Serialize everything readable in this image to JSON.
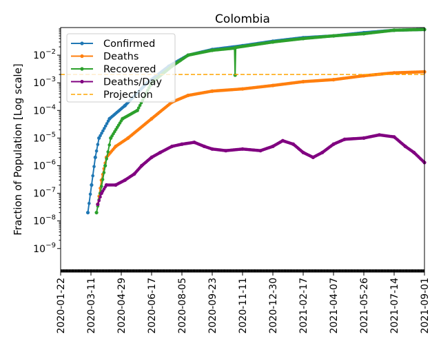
{
  "chart_data": {
    "type": "line",
    "title": "Colombia",
    "xlabel": "",
    "ylabel": "Fraction of Population [Log scale]",
    "yscale": "log",
    "xlim": [
      "2020-01-22",
      "2021-09-01"
    ],
    "ylim": [
      1.4e-10,
      0.1
    ],
    "grid": false,
    "legend_placement": "top-left",
    "xticks": [
      "2020-01-22",
      "2020-03-11",
      "2020-04-29",
      "2020-06-17",
      "2020-08-05",
      "2020-09-23",
      "2020-11-11",
      "2020-12-30",
      "2021-02-17",
      "2021-04-07",
      "2021-05-26",
      "2021-07-14",
      "2021-09-01"
    ],
    "yticks": [
      {
        "value": 1e-09,
        "mant": "10",
        "exp": "−9"
      },
      {
        "value": 1e-08,
        "mant": "10",
        "exp": "−8"
      },
      {
        "value": 1e-07,
        "mant": "10",
        "exp": "−7"
      },
      {
        "value": 1e-06,
        "mant": "10",
        "exp": "−6"
      },
      {
        "value": 1e-05,
        "mant": "10",
        "exp": "−5"
      },
      {
        "value": 0.0001,
        "mant": "10",
        "exp": "−4"
      },
      {
        "value": 0.001,
        "mant": "10",
        "exp": "−3"
      },
      {
        "value": 0.01,
        "mant": "10",
        "exp": "−2"
      }
    ],
    "series": [
      {
        "name": "Confirmed",
        "color": "#1f77b4",
        "points": [
          [
            "2020-03-06",
            2e-08
          ],
          [
            "2020-03-12",
            2e-07
          ],
          [
            "2020-03-18",
            2e-06
          ],
          [
            "2020-03-24",
            1e-05
          ],
          [
            "2020-04-10",
            5e-05
          ],
          [
            "2020-05-05",
            0.00015
          ],
          [
            "2020-06-10",
            0.001
          ],
          [
            "2020-07-15",
            0.004
          ],
          [
            "2020-08-15",
            0.01
          ],
          [
            "2020-09-23",
            0.016
          ],
          [
            "2020-11-11",
            0.022
          ],
          [
            "2020-12-30",
            0.032
          ],
          [
            "2021-02-17",
            0.043
          ],
          [
            "2021-04-07",
            0.05
          ],
          [
            "2021-05-26",
            0.065
          ],
          [
            "2021-07-14",
            0.08
          ],
          [
            "2021-09-01",
            0.085
          ]
        ]
      },
      {
        "name": "Deaths",
        "color": "#ff7f0e",
        "points": [
          [
            "2020-03-22",
            4e-08
          ],
          [
            "2020-03-28",
            3e-07
          ],
          [
            "2020-04-05",
            2e-06
          ],
          [
            "2020-04-20",
            5e-06
          ],
          [
            "2020-05-10",
            1e-05
          ],
          [
            "2020-06-17",
            5e-05
          ],
          [
            "2020-07-20",
            0.0002
          ],
          [
            "2020-08-15",
            0.00035
          ],
          [
            "2020-09-23",
            0.0005
          ],
          [
            "2020-11-11",
            0.0006
          ],
          [
            "2020-12-30",
            0.0008
          ],
          [
            "2021-02-17",
            0.0011
          ],
          [
            "2021-04-07",
            0.0013
          ],
          [
            "2021-05-26",
            0.0018
          ],
          [
            "2021-07-14",
            0.0023
          ],
          [
            "2021-09-01",
            0.0025
          ]
        ]
      },
      {
        "name": "Recovered",
        "color": "#2ca02c",
        "points": [
          [
            "2020-03-20",
            2e-08
          ],
          [
            "2020-03-26",
            1e-07
          ],
          [
            "2020-04-03",
            1e-06
          ],
          [
            "2020-04-12",
            1e-05
          ],
          [
            "2020-05-01",
            5e-05
          ],
          [
            "2020-05-25",
            0.0001
          ],
          [
            "2020-06-17",
            0.001
          ],
          [
            "2020-07-20",
            0.004
          ],
          [
            "2020-08-15",
            0.01
          ],
          [
            "2020-09-23",
            0.015
          ],
          [
            "2020-10-29",
            0.018
          ],
          [
            "2020-10-30",
            0.0019
          ],
          [
            "2020-10-31",
            0.019
          ],
          [
            "2020-12-30",
            0.03
          ],
          [
            "2021-02-17",
            0.04
          ],
          [
            "2021-04-07",
            0.05
          ],
          [
            "2021-05-26",
            0.06
          ],
          [
            "2021-07-14",
            0.08
          ],
          [
            "2021-09-01",
            0.085
          ]
        ]
      },
      {
        "name": "Deaths/Day",
        "color": "#800080",
        "points": [
          [
            "2020-03-22",
            4e-08
          ],
          [
            "2020-03-28",
            1e-07
          ],
          [
            "2020-04-05",
            2e-07
          ],
          [
            "2020-04-20",
            2e-07
          ],
          [
            "2020-05-05",
            3e-07
          ],
          [
            "2020-05-20",
            5e-07
          ],
          [
            "2020-06-01",
            1e-06
          ],
          [
            "2020-06-17",
            2e-06
          ],
          [
            "2020-07-01",
            3e-06
          ],
          [
            "2020-07-20",
            5e-06
          ],
          [
            "2020-08-05",
            6e-06
          ],
          [
            "2020-08-25",
            7e-06
          ],
          [
            "2020-09-10",
            5e-06
          ],
          [
            "2020-09-23",
            4e-06
          ],
          [
            "2020-10-15",
            3.5e-06
          ],
          [
            "2020-11-11",
            4e-06
          ],
          [
            "2020-12-10",
            3.5e-06
          ],
          [
            "2020-12-30",
            5e-06
          ],
          [
            "2021-01-15",
            8e-06
          ],
          [
            "2021-02-01",
            6e-06
          ],
          [
            "2021-02-17",
            3e-06
          ],
          [
            "2021-03-05",
            2e-06
          ],
          [
            "2021-03-20",
            3e-06
          ],
          [
            "2021-04-07",
            6e-06
          ],
          [
            "2021-04-25",
            9e-06
          ],
          [
            "2021-05-26",
            1e-05
          ],
          [
            "2021-06-20",
            1.3e-05
          ],
          [
            "2021-07-14",
            1.1e-05
          ],
          [
            "2021-08-01",
            5e-06
          ],
          [
            "2021-08-15",
            3e-06
          ],
          [
            "2021-09-01",
            1.3e-06
          ]
        ]
      },
      {
        "name": "Projection",
        "color": "#ffa500",
        "style": "dashed",
        "value": 0.002
      }
    ]
  }
}
